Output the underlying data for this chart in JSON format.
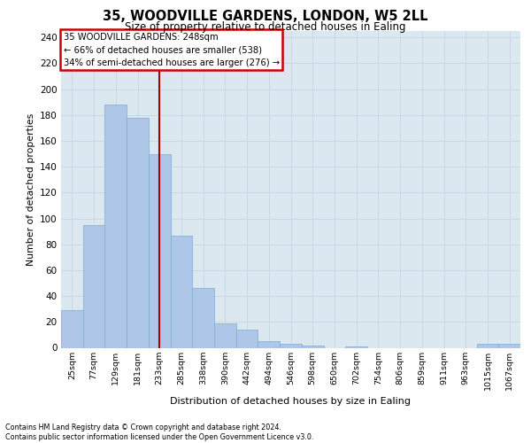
{
  "title1": "35, WOODVILLE GARDENS, LONDON, W5 2LL",
  "title2": "Size of property relative to detached houses in Ealing",
  "xlabel": "Distribution of detached houses by size in Ealing",
  "ylabel": "Number of detached properties",
  "categories": [
    "25sqm",
    "77sqm",
    "129sqm",
    "181sqm",
    "233sqm",
    "285sqm",
    "338sqm",
    "390sqm",
    "442sqm",
    "494sqm",
    "546sqm",
    "598sqm",
    "650sqm",
    "702sqm",
    "754sqm",
    "806sqm",
    "859sqm",
    "911sqm",
    "963sqm",
    "1015sqm",
    "1067sqm"
  ],
  "values": [
    29,
    95,
    188,
    178,
    150,
    87,
    46,
    19,
    14,
    5,
    3,
    2,
    0,
    1,
    0,
    0,
    0,
    0,
    0,
    3,
    3
  ],
  "bar_color": "#aec6e8",
  "bar_edgecolor": "#7aadd4",
  "grid_color": "#c8d8e8",
  "background_color": "#dce8f0",
  "vline_x_index": 4,
  "vline_color": "#aa0000",
  "annotation_lines": [
    "35 WOODVILLE GARDENS: 248sqm",
    "← 66% of detached houses are smaller (538)",
    "34% of semi-detached houses are larger (276) →"
  ],
  "annotation_box_color": "#cc0000",
  "ylim": [
    0,
    245
  ],
  "yticks": [
    0,
    20,
    40,
    60,
    80,
    100,
    120,
    140,
    160,
    180,
    200,
    220,
    240
  ],
  "footer1": "Contains HM Land Registry data © Crown copyright and database right 2024.",
  "footer2": "Contains public sector information licensed under the Open Government Licence v3.0."
}
